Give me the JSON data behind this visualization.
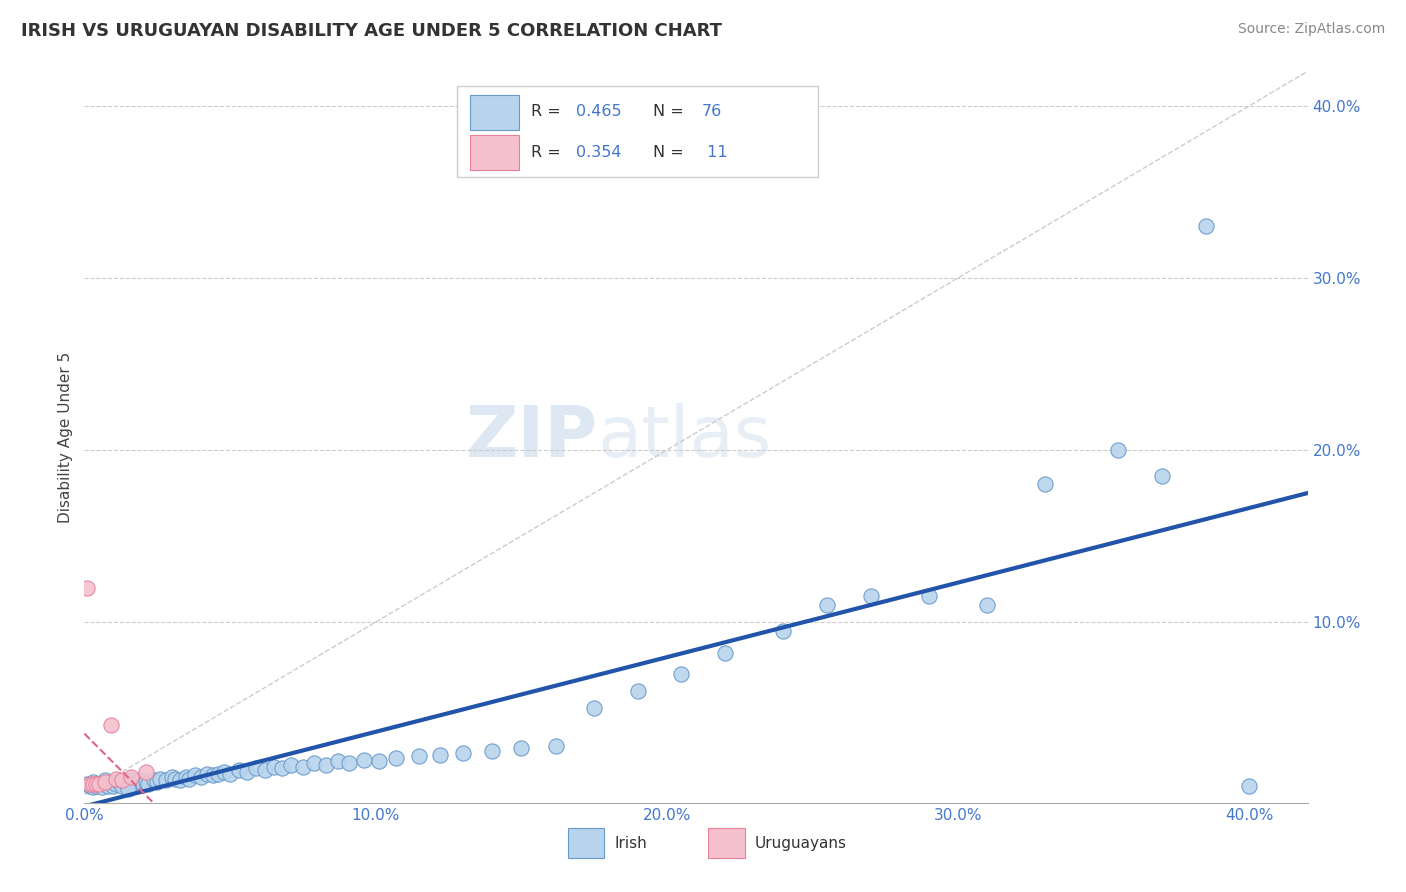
{
  "title": "IRISH VS URUGUAYAN DISABILITY AGE UNDER 5 CORRELATION CHART",
  "source": "Source: ZipAtlas.com",
  "ylabel": "Disability Age Under 5",
  "xlim": [
    0.0,
    0.42
  ],
  "ylim": [
    -0.005,
    0.42
  ],
  "xtick_labels": [
    "0.0%",
    "10.0%",
    "20.0%",
    "30.0%",
    "40.0%"
  ],
  "xtick_vals": [
    0.0,
    0.1,
    0.2,
    0.3,
    0.4
  ],
  "ytick_labels": [
    "10.0%",
    "20.0%",
    "30.0%",
    "40.0%"
  ],
  "ytick_vals": [
    0.1,
    0.2,
    0.3,
    0.4
  ],
  "irish_color": "#b8d4ed",
  "irish_edge_color": "#6699cc",
  "uruguayan_color": "#f5c0ce",
  "uruguayan_edge_color": "#e8809a",
  "regression_irish_color": "#2255aa",
  "regression_uruguayan_color": "#dd6688",
  "diagonal_color": "#cccccc",
  "R_irish": 0.465,
  "N_irish": 76,
  "R_uruguayan": 0.354,
  "N_uruguayan": 11,
  "irish_x": [
    0.001,
    0.002,
    0.003,
    0.003,
    0.004,
    0.005,
    0.006,
    0.007,
    0.007,
    0.008,
    0.009,
    0.01,
    0.011,
    0.012,
    0.013,
    0.014,
    0.015,
    0.016,
    0.017,
    0.018,
    0.019,
    0.02,
    0.021,
    0.022,
    0.024,
    0.025,
    0.026,
    0.028,
    0.03,
    0.031,
    0.033,
    0.035,
    0.036,
    0.038,
    0.04,
    0.042,
    0.044,
    0.046,
    0.048,
    0.05,
    0.053,
    0.056,
    0.059,
    0.062,
    0.065,
    0.068,
    0.071,
    0.075,
    0.079,
    0.083,
    0.087,
    0.091,
    0.096,
    0.101,
    0.107,
    0.115,
    0.122,
    0.13,
    0.14,
    0.15,
    0.162,
    0.175,
    0.19,
    0.205,
    0.22,
    0.24,
    0.255,
    0.27,
    0.29,
    0.31,
    0.33,
    0.355,
    0.37,
    0.385,
    0.4,
    0.015
  ],
  "irish_y": [
    0.006,
    0.005,
    0.004,
    0.007,
    0.005,
    0.006,
    0.004,
    0.006,
    0.008,
    0.005,
    0.007,
    0.005,
    0.006,
    0.007,
    0.005,
    0.007,
    0.006,
    0.008,
    0.006,
    0.007,
    0.008,
    0.006,
    0.007,
    0.006,
    0.008,
    0.007,
    0.009,
    0.008,
    0.01,
    0.009,
    0.008,
    0.01,
    0.009,
    0.011,
    0.01,
    0.012,
    0.011,
    0.012,
    0.013,
    0.012,
    0.014,
    0.013,
    0.015,
    0.014,
    0.016,
    0.015,
    0.017,
    0.016,
    0.018,
    0.017,
    0.019,
    0.018,
    0.02,
    0.019,
    0.021,
    0.022,
    0.023,
    0.024,
    0.025,
    0.027,
    0.028,
    0.05,
    0.06,
    0.07,
    0.082,
    0.095,
    0.11,
    0.115,
    0.115,
    0.11,
    0.18,
    0.2,
    0.185,
    0.33,
    0.005,
    0.003
  ],
  "uruguayan_x": [
    0.001,
    0.002,
    0.003,
    0.004,
    0.005,
    0.007,
    0.009,
    0.011,
    0.013,
    0.016,
    0.021
  ],
  "uruguayan_y": [
    0.12,
    0.006,
    0.006,
    0.006,
    0.006,
    0.007,
    0.04,
    0.009,
    0.008,
    0.01,
    0.013
  ]
}
